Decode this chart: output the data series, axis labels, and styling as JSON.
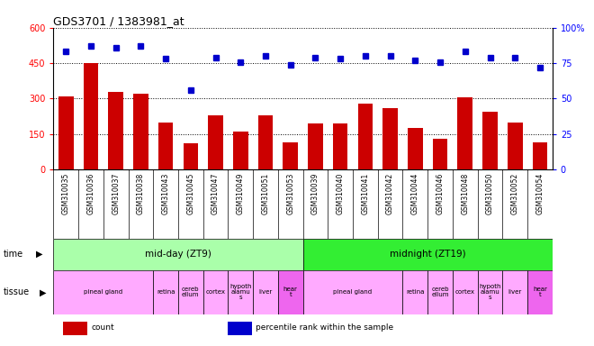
{
  "title": "GDS3701 / 1383981_at",
  "samples": [
    "GSM310035",
    "GSM310036",
    "GSM310037",
    "GSM310038",
    "GSM310043",
    "GSM310045",
    "GSM310047",
    "GSM310049",
    "GSM310051",
    "GSM310053",
    "GSM310039",
    "GSM310040",
    "GSM310041",
    "GSM310042",
    "GSM310044",
    "GSM310046",
    "GSM310048",
    "GSM310050",
    "GSM310052",
    "GSM310054"
  ],
  "counts": [
    310,
    450,
    330,
    320,
    200,
    110,
    230,
    160,
    230,
    115,
    195,
    195,
    280,
    260,
    175,
    130,
    305,
    245,
    200,
    115
  ],
  "percentiles": [
    83,
    87,
    86,
    87,
    78,
    56,
    79,
    76,
    80,
    74,
    79,
    78,
    80,
    80,
    77,
    76,
    83,
    79,
    79,
    72
  ],
  "bar_color": "#cc0000",
  "dot_color": "#0000cc",
  "ylim_left": [
    0,
    600
  ],
  "ylim_right": [
    0,
    100
  ],
  "yticks_left": [
    0,
    150,
    300,
    450,
    600
  ],
  "ytick_labels_left": [
    "0",
    "150",
    "300",
    "450",
    "600"
  ],
  "yticks_right": [
    0,
    25,
    50,
    75,
    100
  ],
  "ytick_labels_right": [
    "0",
    "25",
    "50",
    "75",
    "100%"
  ],
  "time_groups": [
    {
      "label": "mid-day (ZT9)",
      "start": 0,
      "end": 10,
      "color": "#aaffaa"
    },
    {
      "label": "midnight (ZT19)",
      "start": 10,
      "end": 20,
      "color": "#33ee33"
    }
  ],
  "tissue_groups": [
    {
      "label": "pineal gland",
      "start": 0,
      "end": 4,
      "color": "#ffaaff"
    },
    {
      "label": "retina",
      "start": 4,
      "end": 5,
      "color": "#ffaaff"
    },
    {
      "label": "cereb\nellum",
      "start": 5,
      "end": 6,
      "color": "#ffaaff"
    },
    {
      "label": "cortex",
      "start": 6,
      "end": 7,
      "color": "#ffaaff"
    },
    {
      "label": "hypoth\nalamu\ns",
      "start": 7,
      "end": 8,
      "color": "#ffaaff"
    },
    {
      "label": "liver",
      "start": 8,
      "end": 9,
      "color": "#ffaaff"
    },
    {
      "label": "hear\nt",
      "start": 9,
      "end": 10,
      "color": "#ee66ee"
    },
    {
      "label": "pineal gland",
      "start": 10,
      "end": 14,
      "color": "#ffaaff"
    },
    {
      "label": "retina",
      "start": 14,
      "end": 15,
      "color": "#ffaaff"
    },
    {
      "label": "cereb\nellum",
      "start": 15,
      "end": 16,
      "color": "#ffaaff"
    },
    {
      "label": "cortex",
      "start": 16,
      "end": 17,
      "color": "#ffaaff"
    },
    {
      "label": "hypoth\nalamu\ns",
      "start": 17,
      "end": 18,
      "color": "#ffaaff"
    },
    {
      "label": "liver",
      "start": 18,
      "end": 19,
      "color": "#ffaaff"
    },
    {
      "label": "hear\nt",
      "start": 19,
      "end": 20,
      "color": "#ee66ee"
    }
  ],
  "legend_items": [
    {
      "label": "count",
      "color": "#cc0000"
    },
    {
      "label": "percentile rank within the sample",
      "color": "#0000cc"
    }
  ],
  "main_bg": "#ffffff",
  "xtick_bg": "#d8d8d8",
  "grid_color": "#000000",
  "grid_style": ":",
  "grid_lw": 0.7
}
